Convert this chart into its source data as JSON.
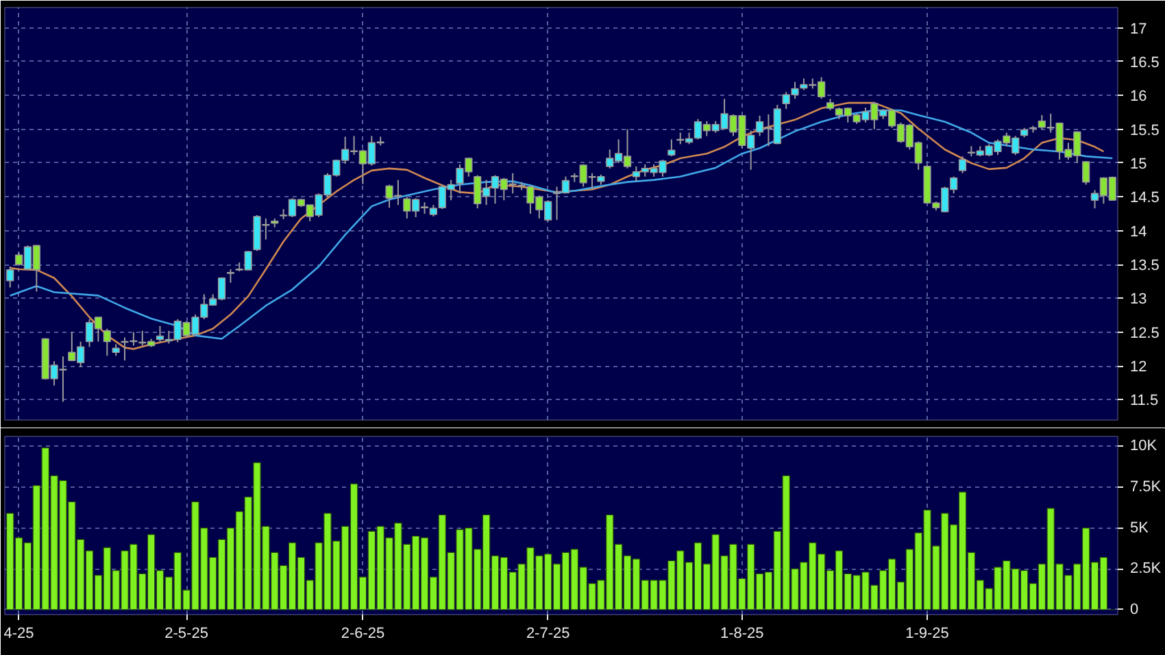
{
  "chart_data": [
    {
      "type": "candlestick",
      "ohlc": [
        [
          13.26,
          13.47,
          13.16,
          13.42
        ],
        [
          13.64,
          13.68,
          13.48,
          13.5
        ],
        [
          13.43,
          13.78,
          13.43,
          13.76
        ],
        [
          13.78,
          13.78,
          13.1,
          13.42
        ],
        [
          12.4,
          12.41,
          11.8,
          11.81
        ],
        [
          11.81,
          12.07,
          11.71,
          12.01
        ],
        [
          11.94,
          12.14,
          11.47,
          11.95
        ],
        [
          12.2,
          12.5,
          12.07,
          12.08
        ],
        [
          12.05,
          12.36,
          11.98,
          12.28
        ],
        [
          12.36,
          12.69,
          12.28,
          12.64
        ],
        [
          12.72,
          12.72,
          12.36,
          12.55
        ],
        [
          12.52,
          12.55,
          12.15,
          12.36
        ],
        [
          12.2,
          12.32,
          12.15,
          12.26
        ],
        [
          12.35,
          12.42,
          12.08,
          12.36
        ],
        [
          12.36,
          12.5,
          12.3,
          12.37
        ],
        [
          12.34,
          12.52,
          12.3,
          12.35
        ],
        [
          12.36,
          12.4,
          12.28,
          12.3
        ],
        [
          12.39,
          12.59,
          12.35,
          12.44
        ],
        [
          12.37,
          12.52,
          12.33,
          12.39
        ],
        [
          12.39,
          12.69,
          12.35,
          12.66
        ],
        [
          12.64,
          12.66,
          12.42,
          12.45
        ],
        [
          12.47,
          12.76,
          12.45,
          12.72
        ],
        [
          12.72,
          13.06,
          12.69,
          12.91
        ],
        [
          12.9,
          13.06,
          12.89,
          12.99
        ],
        [
          12.99,
          13.31,
          12.97,
          13.3
        ],
        [
          13.37,
          13.43,
          13.23,
          13.38
        ],
        [
          13.42,
          13.53,
          13.4,
          13.43
        ],
        [
          13.42,
          13.7,
          13.42,
          13.69
        ],
        [
          13.72,
          14.23,
          13.7,
          14.21
        ],
        [
          14.08,
          14.18,
          13.87,
          14.09
        ],
        [
          14.14,
          14.18,
          14.05,
          14.11
        ],
        [
          14.22,
          14.32,
          14.17,
          14.23
        ],
        [
          14.22,
          14.48,
          14.2,
          14.46
        ],
        [
          14.46,
          14.47,
          14.35,
          14.37
        ],
        [
          14.38,
          14.38,
          14.14,
          14.21
        ],
        [
          14.23,
          14.55,
          14.2,
          14.53
        ],
        [
          14.53,
          14.85,
          14.5,
          14.82
        ],
        [
          14.82,
          15.05,
          14.8,
          15.04
        ],
        [
          15.04,
          15.39,
          14.99,
          15.2
        ],
        [
          15.17,
          15.4,
          15.12,
          15.18
        ],
        [
          15.18,
          15.2,
          14.69,
          14.99
        ],
        [
          14.99,
          15.4,
          14.96,
          15.3
        ],
        [
          15.3,
          15.39,
          15.26,
          15.31
        ],
        [
          14.66,
          14.68,
          14.34,
          14.48
        ],
        [
          14.51,
          14.75,
          14.38,
          14.52
        ],
        [
          14.47,
          14.5,
          14.18,
          14.29
        ],
        [
          14.29,
          14.48,
          14.2,
          14.46
        ],
        [
          14.34,
          14.42,
          14.25,
          14.35
        ],
        [
          14.24,
          14.38,
          14.21,
          14.33
        ],
        [
          14.34,
          14.68,
          14.32,
          14.65
        ],
        [
          14.61,
          14.75,
          14.45,
          14.68
        ],
        [
          14.7,
          14.98,
          14.55,
          14.92
        ],
        [
          15.07,
          15.08,
          14.8,
          14.87
        ],
        [
          14.8,
          14.82,
          14.33,
          14.4
        ],
        [
          14.51,
          14.75,
          14.38,
          14.63
        ],
        [
          14.63,
          14.82,
          14.4,
          14.8
        ],
        [
          14.76,
          14.78,
          14.45,
          14.61
        ],
        [
          14.68,
          14.85,
          14.55,
          14.69
        ],
        [
          14.67,
          14.72,
          14.6,
          14.66
        ],
        [
          14.65,
          14.67,
          14.25,
          14.41
        ],
        [
          14.5,
          14.52,
          14.18,
          14.31
        ],
        [
          14.16,
          14.45,
          14.14,
          14.43
        ],
        [
          14.55,
          14.65,
          14.16,
          14.56
        ],
        [
          14.56,
          14.8,
          14.55,
          14.74
        ],
        [
          14.8,
          14.85,
          14.72,
          14.81
        ],
        [
          14.97,
          14.98,
          14.65,
          14.71
        ],
        [
          14.8,
          14.85,
          14.6,
          14.79
        ],
        [
          14.73,
          14.83,
          14.68,
          14.8
        ],
        [
          14.95,
          15.2,
          14.92,
          15.07
        ],
        [
          15.03,
          15.35,
          15.0,
          15.14
        ],
        [
          15.1,
          15.5,
          14.92,
          14.95
        ],
        [
          14.8,
          14.95,
          14.73,
          14.87
        ],
        [
          14.87,
          14.98,
          14.8,
          14.92
        ],
        [
          14.86,
          14.98,
          14.8,
          14.92
        ],
        [
          14.86,
          15.05,
          14.8,
          15.03
        ],
        [
          15.12,
          15.35,
          15.1,
          15.19
        ],
        [
          15.34,
          15.45,
          15.28,
          15.35
        ],
        [
          15.31,
          15.45,
          15.28,
          15.36
        ],
        [
          15.37,
          15.65,
          15.35,
          15.61
        ],
        [
          15.57,
          15.62,
          15.4,
          15.48
        ],
        [
          15.48,
          15.62,
          15.45,
          15.57
        ],
        [
          15.51,
          15.95,
          15.5,
          15.73
        ],
        [
          15.7,
          15.72,
          15.4,
          15.46
        ],
        [
          15.7,
          15.71,
          15.22,
          15.26
        ],
        [
          15.22,
          15.48,
          14.9,
          15.41
        ],
        [
          15.46,
          15.7,
          15.4,
          15.61
        ],
        [
          15.51,
          15.72,
          15.25,
          15.52
        ],
        [
          15.29,
          15.86,
          15.28,
          15.8
        ],
        [
          15.88,
          16.05,
          15.8,
          16.01
        ],
        [
          16.01,
          16.2,
          15.95,
          16.1
        ],
        [
          16.11,
          16.25,
          16.08,
          16.16
        ],
        [
          16.15,
          16.25,
          16.1,
          16.16
        ],
        [
          16.2,
          16.27,
          15.95,
          15.98
        ],
        [
          15.89,
          15.95,
          15.78,
          15.81
        ],
        [
          15.8,
          15.82,
          15.65,
          15.71
        ],
        [
          15.81,
          15.82,
          15.6,
          15.7
        ],
        [
          15.71,
          15.73,
          15.58,
          15.61
        ],
        [
          15.64,
          15.82,
          15.6,
          15.76
        ],
        [
          15.88,
          15.9,
          15.5,
          15.64
        ],
        [
          15.7,
          15.8,
          15.65,
          15.78
        ],
        [
          15.78,
          15.8,
          15.52,
          15.55
        ],
        [
          15.57,
          15.6,
          15.3,
          15.32
        ],
        [
          15.56,
          15.58,
          15.2,
          15.24
        ],
        [
          15.3,
          15.32,
          14.9,
          15.0
        ],
        [
          14.95,
          14.97,
          14.4,
          14.41
        ],
        [
          14.41,
          14.43,
          14.3,
          14.34
        ],
        [
          14.28,
          14.65,
          14.27,
          14.63
        ],
        [
          14.61,
          14.8,
          14.55,
          14.78
        ],
        [
          14.89,
          15.1,
          14.85,
          15.05
        ],
        [
          15.15,
          15.25,
          15.1,
          15.16
        ],
        [
          15.12,
          15.25,
          15.1,
          15.18
        ],
        [
          15.12,
          15.28,
          15.1,
          15.25
        ],
        [
          15.17,
          15.35,
          15.12,
          15.32
        ],
        [
          15.4,
          15.45,
          15.25,
          15.3
        ],
        [
          15.15,
          15.4,
          15.12,
          15.37
        ],
        [
          15.41,
          15.52,
          15.38,
          15.49
        ],
        [
          15.51,
          15.55,
          15.45,
          15.52
        ],
        [
          15.62,
          15.71,
          15.5,
          15.53
        ],
        [
          15.53,
          15.73,
          15.45,
          15.52
        ],
        [
          15.59,
          15.6,
          15.05,
          15.17
        ],
        [
          15.2,
          15.3,
          15.05,
          15.09
        ],
        [
          15.46,
          15.47,
          15.0,
          15.11
        ],
        [
          15.02,
          15.03,
          14.68,
          14.72
        ],
        [
          14.45,
          14.6,
          14.33,
          14.55
        ],
        [
          14.78,
          14.79,
          14.4,
          14.52
        ],
        [
          14.79,
          14.8,
          14.45,
          14.45
        ]
      ],
      "series": [
        {
          "type": "line",
          "color": "#d08850",
          "values": [
            13.45,
            13.43,
            null,
            13.42,
            null,
            13.3,
            null,
            13.03,
            null,
            12.72,
            null,
            12.45,
            null,
            12.27,
            12.25,
            null,
            12.32,
            null,
            null,
            12.4,
            null,
            12.45,
            null,
            12.55,
            null,
            12.76,
            null,
            13.03,
            null,
            13.43,
            null,
            13.84,
            null,
            14.18,
            null,
            14.38,
            null,
            14.58,
            null,
            14.75,
            null,
            14.89,
            null,
            14.92,
            null,
            14.9,
            null,
            14.78,
            null,
            14.67,
            null,
            14.57,
            null,
            14.55,
            null,
            14.68,
            null,
            null,
            14.65,
            null,
            14.61,
            null,
            14.57,
            null,
            14.59,
            null,
            14.61,
            null,
            14.68,
            null,
            14.8,
            null,
            14.9,
            null,
            14.97,
            null,
            15.07,
            null,
            null,
            15.14,
            null,
            15.24,
            null,
            15.39,
            null,
            15.5,
            null,
            null,
            null,
            15.64,
            null,
            null,
            15.81,
            null,
            null,
            15.89,
            null,
            null,
            15.89,
            null,
            null,
            15.74,
            null,
            15.51,
            null,
            null,
            15.2,
            null,
            null,
            15.0,
            null,
            14.91,
            null,
            14.93,
            null,
            15.07,
            null,
            15.3,
            null,
            15.37,
            null,
            15.34,
            null,
            15.24,
            15.17,
            null
          ]
        },
        {
          "type": "line",
          "color": "#40a8e8",
          "values": [
            13.04,
            null,
            null,
            13.18,
            null,
            13.09,
            null,
            null,
            null,
            null,
            13.04,
            null,
            null,
            12.86,
            null,
            null,
            12.7,
            null,
            null,
            12.59,
            null,
            12.45,
            null,
            null,
            12.4,
            null,
            12.59,
            null,
            null,
            12.89,
            null,
            null,
            13.13,
            null,
            null,
            13.47,
            null,
            null,
            13.94,
            null,
            null,
            14.36,
            null,
            14.46,
            null,
            14.52,
            null,
            null,
            14.61,
            null,
            null,
            14.68,
            null,
            null,
            14.72,
            null,
            null,
            14.73,
            null,
            14.67,
            null,
            null,
            14.56,
            null,
            14.59,
            null,
            null,
            14.66,
            null,
            null,
            14.72,
            null,
            null,
            14.75,
            null,
            null,
            14.8,
            null,
            null,
            null,
            14.93,
            null,
            null,
            15.14,
            null,
            15.22,
            null,
            null,
            null,
            15.47,
            null,
            null,
            15.61,
            null,
            null,
            15.72,
            null,
            null,
            15.78,
            null,
            null,
            15.78,
            null,
            15.71,
            null,
            null,
            15.61,
            null,
            null,
            15.45,
            null,
            15.3,
            null,
            null,
            15.24,
            null,
            15.2,
            null,
            null,
            15.17,
            null,
            null,
            15.1,
            null,
            null,
            15.07
          ]
        }
      ],
      "ylim": [
        11.2,
        17.3
      ],
      "yticks": [
        11.5,
        12,
        12.5,
        13,
        13.5,
        14,
        14.5,
        15,
        15.5,
        16,
        16.5,
        17
      ],
      "grid": true,
      "tick_labels": "y"
    },
    {
      "type": "bar",
      "color": "#7ff020",
      "categories": [
        null,
        "4-25",
        null,
        null,
        null,
        null,
        null,
        null,
        null,
        null,
        null,
        null,
        null,
        null,
        null,
        null,
        null,
        null,
        null,
        null,
        "2-5-25",
        null,
        null,
        null,
        null,
        null,
        null,
        null,
        null,
        null,
        null,
        null,
        null,
        null,
        null,
        null,
        null,
        null,
        null,
        null,
        "2-6-25",
        null,
        null,
        null,
        null,
        null,
        null,
        null,
        null,
        null,
        null,
        null,
        null,
        null,
        null,
        null,
        null,
        null,
        null,
        null,
        null,
        "2-7-25",
        null,
        null,
        null,
        null,
        null,
        null,
        null,
        null,
        null,
        null,
        null,
        null,
        null,
        null,
        null,
        null,
        null,
        null,
        null,
        null,
        null,
        "1-8-25",
        null,
        null,
        null,
        null,
        null,
        null,
        null,
        null,
        null,
        null,
        null,
        null,
        null,
        null,
        null,
        null,
        null,
        null,
        null,
        null,
        "1-9-25",
        null,
        null,
        null,
        null,
        null,
        null,
        null,
        null,
        null,
        null,
        null,
        null,
        null,
        null,
        null,
        null,
        null,
        null,
        null,
        null,
        null
      ],
      "values": [
        5900,
        4400,
        4100,
        7600,
        9900,
        8200,
        7900,
        6600,
        4300,
        3600,
        2100,
        3800,
        2400,
        3600,
        4000,
        2200,
        4600,
        2400,
        2000,
        3500,
        1200,
        6600,
        5000,
        3200,
        4300,
        5000,
        6000,
        6900,
        9000,
        5100,
        3500,
        2700,
        4100,
        3200,
        1800,
        4100,
        5900,
        4200,
        5100,
        7700,
        2000,
        4800,
        5100,
        4400,
        5300,
        4000,
        4500,
        4400,
        2000,
        5800,
        3500,
        4900,
        5000,
        3700,
        5800,
        3300,
        3200,
        2300,
        2800,
        3800,
        3300,
        3400,
        2800,
        3500,
        3700,
        2600,
        1600,
        1800,
        5800,
        4000,
        3300,
        3100,
        1800,
        1800,
        1800,
        3000,
        3600,
        2900,
        4100,
        2800,
        4600,
        3300,
        4000,
        1900,
        4000,
        2200,
        2300,
        4800,
        8200,
        2500,
        2900,
        4100,
        3400,
        2400,
        3600,
        2200,
        2100,
        2300,
        1500,
        2400,
        3100,
        1700,
        3700,
        4700,
        6100,
        3900,
        5900,
        5200,
        7200,
        3500,
        1800,
        1300,
        2600,
        3000,
        2500,
        2400,
        1600,
        2800,
        6200,
        2800,
        2100,
        2800,
        5000,
        2900,
        3200,
        0
      ],
      "ylim": [
        -300,
        10600
      ],
      "yticks": [
        {
          "value": 0,
          "label": "0"
        },
        {
          "value": 2500,
          "label": "2.5K"
        },
        {
          "value": 5000,
          "label": "5K"
        },
        {
          "value": 7500,
          "label": "7.5K"
        },
        {
          "value": 10000,
          "label": "10K"
        }
      ],
      "grid": true
    }
  ]
}
